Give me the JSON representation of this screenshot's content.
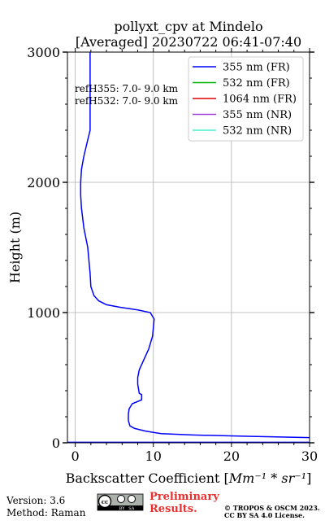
{
  "chart_data": {
    "type": "line",
    "title_line1": "pollyxt_cpv at Mindelo",
    "title_line2": "[Averaged] 20230722 06:41-07:40",
    "xlabel_text": "Backscatter Coefficient [",
    "xlabel_unit": "Mm⁻¹ * sr⁻¹",
    "xlabel_end": "]",
    "ylabel": "Height (m)",
    "xlim": [
      -1,
      30
    ],
    "ylim": [
      0,
      3000
    ],
    "xticks": [
      0,
      10,
      20,
      30
    ],
    "yticks": [
      0,
      1000,
      2000,
      3000
    ],
    "grid": true,
    "legend_position": "top-right",
    "legend": [
      {
        "name": "355 nm (FR)",
        "color": "#0000ff"
      },
      {
        "name": "532 nm (FR)",
        "color": "#00b400"
      },
      {
        "name": "1064 nm (FR)",
        "color": "#e00000"
      },
      {
        "name": "355 nm (NR)",
        "color": "#a040e0"
      },
      {
        "name": "532 nm (NR)",
        "color": "#40f0d0"
      }
    ],
    "annotations": [
      "refH355:  7.0- 9.0 km",
      "refH532:  7.0- 9.0 km"
    ],
    "series": [
      {
        "name": "355 nm (FR)",
        "color": "#0000ff",
        "x": [
          30,
          22,
          15,
          11,
          10,
          9,
          8.3,
          7.6,
          7,
          6.8,
          6.8,
          6.9,
          7.2,
          7.3,
          8.5,
          8.5,
          8.2,
          8.0,
          8.0,
          8.2,
          8.8,
          9.4,
          9.9,
          10.1,
          9.6,
          8.0,
          5.8,
          4.0,
          3.0,
          2.4,
          2.0,
          1.9,
          1.6,
          1.1,
          0.8,
          0.7,
          0.7,
          0.8,
          1.1,
          1.5,
          1.9,
          1.9,
          1.9,
          1.9,
          1.9
        ],
        "y": [
          40,
          50,
          60,
          70,
          80,
          90,
          100,
          110,
          130,
          170,
          220,
          260,
          290,
          300,
          330,
          370,
          380,
          450,
          500,
          560,
          640,
          720,
          820,
          950,
          1000,
          1020,
          1040,
          1060,
          1090,
          1130,
          1200,
          1300,
          1500,
          1650,
          1800,
          1900,
          2000,
          2100,
          2200,
          2300,
          2400,
          2550,
          2700,
          2850,
          3000
        ]
      }
    ]
  },
  "footer": {
    "version": "Version: 3.6",
    "method": "Method: Raman",
    "license_badge_icons": "cc-by-sa-icon",
    "license_badge_text": "BY   SA",
    "preliminary_line1": "Preliminary",
    "preliminary_line2": "Results.",
    "preliminary_color": "#e83030",
    "copyright_line1": "© TROPOS & OSCM 2023.",
    "copyright_line2": "CC BY SA 4.0 License."
  }
}
